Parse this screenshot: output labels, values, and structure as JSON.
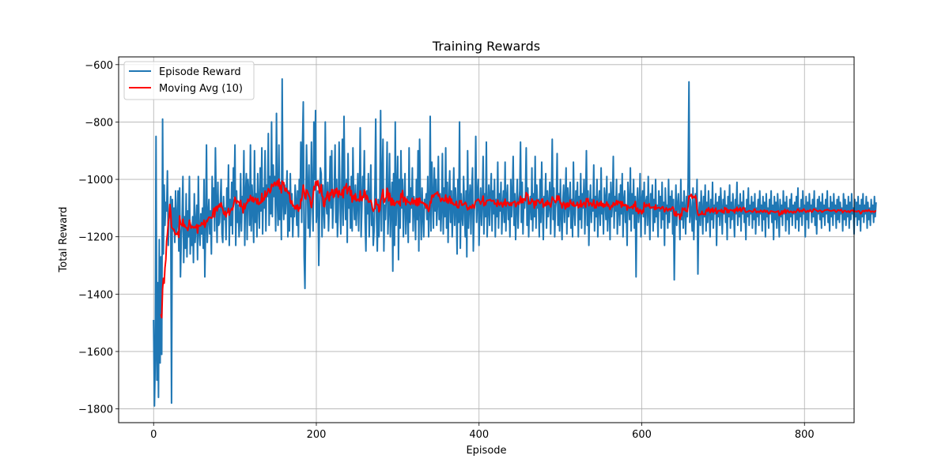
{
  "chart_data": {
    "type": "line",
    "title": "Training Rewards",
    "xlabel": "Episode",
    "ylabel": "Total Reward",
    "xlim": [
      -43,
      861
    ],
    "ylim": [
      -1848,
      -573
    ],
    "xticks": [
      0,
      200,
      400,
      600,
      800
    ],
    "yticks": [
      -1800,
      -1600,
      -1400,
      -1200,
      -1000,
      -800,
      -600
    ],
    "grid": true,
    "legend_position": "upper left",
    "series": [
      {
        "name": "Episode Reward",
        "color": "#1f77b4",
        "x_start": 0,
        "values": [
          -1490,
          -1790,
          -1630,
          -850,
          -1700,
          -1360,
          -1760,
          -1210,
          -1640,
          -1270,
          -1610,
          -790,
          -1260,
          -1020,
          -1160,
          -1080,
          -1110,
          -970,
          -1230,
          -1120,
          -1130,
          -1060,
          -1780,
          -1070,
          -1180,
          -1100,
          -1220,
          -1040,
          -1190,
          -1150,
          -1040,
          -1250,
          -1030,
          -1340,
          -1210,
          -1150,
          -990,
          -1290,
          -1130,
          -1240,
          -1050,
          -1270,
          -1110,
          -1200,
          -990,
          -1260,
          -1160,
          -1230,
          -1130,
          -1290,
          -1050,
          -1220,
          -1160,
          -1090,
          -1280,
          -990,
          -1180,
          -1230,
          -1120,
          -1190,
          -1100,
          -1240,
          -1000,
          -1340,
          -1150,
          -880,
          -1220,
          -1130,
          -1070,
          -1190,
          -1110,
          -1260,
          -990,
          -1130,
          -1030,
          -1180,
          -890,
          -1100,
          -1220,
          -1010,
          -1160,
          -1150,
          -1080,
          -1000,
          -1190,
          -1220,
          -1060,
          -1140,
          -1100,
          -1210,
          -1030,
          -1110,
          -950,
          -1230,
          -1070,
          -1160,
          -1010,
          -1190,
          -960,
          -1060,
          -880,
          -1230,
          -1040,
          -1150,
          -1090,
          -1200,
          -1140,
          -980,
          -1180,
          -1060,
          -1100,
          -900,
          -1230,
          -1050,
          -980,
          -1210,
          -1000,
          -1050,
          -1160,
          -880,
          -1180,
          -1020,
          -1090,
          -1220,
          -900,
          -1150,
          -1050,
          -1200,
          -980,
          -1080,
          -1170,
          -960,
          -1110,
          -890,
          -1190,
          -1030,
          -1100,
          -900,
          -1180,
          -1020,
          -1060,
          -840,
          -1160,
          -990,
          -1120,
          -800,
          -1130,
          -950,
          -1060,
          -990,
          -1180,
          -770,
          -1070,
          -1160,
          -880,
          -1140,
          -1010,
          -1210,
          -650,
          -1080,
          -1140,
          -1020,
          -1120,
          -1060,
          -970,
          -1200,
          -1040,
          -1180,
          -980,
          -1130,
          -1050,
          -1200,
          -1100,
          -1130,
          -1020,
          -1080,
          -1160,
          -1040,
          -1200,
          -1000,
          -1090,
          -870,
          -1150,
          -880,
          -730,
          -1270,
          -1380,
          -1120,
          -880,
          -1040,
          -1170,
          -950,
          -1200,
          -1100,
          -870,
          -1060,
          -1180,
          -800,
          -1000,
          -760,
          -1150,
          -1090,
          -1040,
          -1300,
          -1100,
          -960,
          -980,
          -1200,
          -1020,
          -1090,
          -1170,
          -800,
          -1080,
          -1120,
          -1010,
          -1180,
          -1080,
          -920,
          -1100,
          -900,
          -1170,
          -1070,
          -1040,
          -880,
          -1150,
          -1000,
          -1200,
          -1110,
          -870,
          -1030,
          -1190,
          -1070,
          -860,
          -1160,
          -780,
          -1050,
          -1140,
          -1000,
          -1220,
          -910,
          -1100,
          -1030,
          -1170,
          -990,
          -1180,
          -890,
          -1070,
          -1140,
          -1020,
          -1160,
          -1090,
          -980,
          -1180,
          -1050,
          -820,
          -1200,
          -1100,
          -990,
          -1060,
          -900,
          -1150,
          -1250,
          -1040,
          -1120,
          -980,
          -1200,
          -1080,
          -950,
          -1160,
          -1100,
          -1230,
          -1180,
          -1020,
          -790,
          -1130,
          -1250,
          -1070,
          -1200,
          -1100,
          -760,
          -1180,
          -1010,
          -860,
          -1250,
          -1090,
          -1140,
          -1050,
          -870,
          -1190,
          -1110,
          -910,
          -1200,
          -1090,
          -1010,
          -1320,
          -980,
          -1230,
          -800,
          -1160,
          -1060,
          -920,
          -1280,
          -1000,
          -1170,
          -900,
          -1100,
          -1000,
          -1200,
          -1070,
          -980,
          -1190,
          -1080,
          -1060,
          -1220,
          -890,
          -1150,
          -1030,
          -1100,
          -960,
          -1180,
          -1060,
          -1090,
          -1210,
          -1000,
          -1140,
          -900,
          -1250,
          -860,
          -1100,
          -1210,
          -1030,
          -1130,
          -1200,
          -1070,
          -1100,
          -1050,
          -1140,
          -990,
          -1200,
          -1110,
          -780,
          -1180,
          -940,
          -1060,
          -1170,
          -960,
          -1110,
          -1000,
          -1160,
          -1080,
          -920,
          -1140,
          -1050,
          -1180,
          -1100,
          -910,
          -1190,
          -1030,
          -1130,
          -890,
          -1170,
          -1010,
          -1220,
          -1070,
          -970,
          -1150,
          -1040,
          -1200,
          -1100,
          -960,
          -1160,
          -1030,
          -1090,
          -1260,
          -1000,
          -1150,
          -800,
          -1240,
          -1050,
          -1120,
          -1160,
          -990,
          -1090,
          -1200,
          -1040,
          -1270,
          -900,
          -1170,
          -1090,
          -1020,
          -1190,
          -1040,
          -960,
          -1250,
          -1110,
          -1080,
          -850,
          -1150,
          -1060,
          -1000,
          -1230,
          -1100,
          -1030,
          -1160,
          -1080,
          -920,
          -1190,
          -1050,
          -1130,
          -870,
          -1200,
          -1100,
          -1020,
          -1160,
          -1060,
          -980,
          -1180,
          -1040,
          -1120,
          -1000,
          -1200,
          -1070,
          -1130,
          -940,
          -1170,
          -1050,
          -1110,
          -1010,
          -1190,
          -1090,
          -1040,
          -1150,
          -940,
          -1180,
          -1070,
          -1020,
          -1140,
          -1080,
          -1200,
          -1000,
          -1130,
          -1060,
          -920,
          -1160,
          -1050,
          -1210,
          -1090,
          -1000,
          -1170,
          -1080,
          -1040,
          -870,
          -1150,
          -1010,
          -1190,
          -1080,
          -1100,
          -1050,
          -890,
          -1160,
          -1030,
          -1200,
          -1090,
          -1060,
          -1140,
          -960,
          -1180,
          -1050,
          -1130,
          -920,
          -1170,
          -1020,
          -1100,
          -1070,
          -1200,
          -1000,
          -1150,
          -940,
          -1110,
          -1210,
          -1060,
          -1080,
          -980,
          -1170,
          -1040,
          -1130,
          -1090,
          -1010,
          -1190,
          -1060,
          -860,
          -1140,
          -1030,
          -1200,
          -1100,
          -1070,
          -910,
          -1160,
          -1050,
          -1180,
          -1000,
          -1120,
          -1210,
          -1080,
          -1020,
          -1150,
          -1060,
          -960,
          -1190,
          -1030,
          -1130,
          -1090,
          -1010,
          -1170,
          -1070,
          -1200,
          -940,
          -1110,
          -1160,
          -1040,
          -1090,
          -1010,
          -1200,
          -1060,
          -1140,
          -980,
          -1170,
          -1050,
          -1100,
          -1000,
          -1190,
          -1080,
          -900,
          -1160,
          -1040,
          -1230,
          -1090,
          -1020,
          -1150,
          -1070,
          -1110,
          -950,
          -1180,
          -1060,
          -1130,
          -1000,
          -1200,
          -1080,
          -1040,
          -1160,
          -960,
          -1120,
          -1090,
          -1190,
          -1030,
          -1070,
          -1140,
          -990,
          -1180,
          -1100,
          -1050,
          -1210,
          -1010,
          -1130,
          -1080,
          -920,
          -1170,
          -1060,
          -1110,
          -1000,
          -1190,
          -1090,
          -1050,
          -1160,
          -1020,
          -1120,
          -980,
          -1200,
          -1070,
          -1040,
          -1150,
          -1100,
          -1230,
          -1010,
          -1080,
          -1140,
          -960,
          -1180,
          -1050,
          -1120,
          -1000,
          -1170,
          -1060,
          -1340,
          -1090,
          -1030,
          -1150,
          -1110,
          -980,
          -1200,
          -1070,
          -1040,
          -1130,
          -1010,
          -1190,
          -1080,
          -1060,
          -1160,
          -990,
          -1120,
          -1210,
          -1050,
          -1100,
          -1020,
          -1180,
          -1070,
          -1150,
          -1000,
          -1130,
          -1090,
          -1200,
          -1040,
          -1110,
          -1060,
          -1170,
          -1010,
          -1140,
          -1080,
          -1230,
          -1030,
          -1120,
          -1090,
          -1170,
          -1000,
          -1150,
          -1060,
          -1110,
          -1040,
          -1190,
          -1070,
          -1350,
          -1130,
          -1020,
          -1160,
          -1090,
          -1050,
          -1120,
          -1210,
          -1000,
          -1140,
          -1080,
          -1170,
          -1040,
          -1100,
          -1190,
          -1060,
          -1130,
          -1010,
          -660,
          -1150,
          -1070,
          -1110,
          -1180,
          -1030,
          -1210,
          -1090,
          -1050,
          -1140,
          -1000,
          -1330,
          -1120,
          -1080,
          -1160,
          -1040,
          -1100,
          -1190,
          -1060,
          -1130,
          -1020,
          -1180,
          -1080,
          -1150,
          -1040,
          -1110,
          -1200,
          -1070,
          -1140,
          -1010,
          -1170,
          -1090,
          -1120,
          -1050,
          -1230,
          -1080,
          -1130,
          -1060,
          -1160,
          -1030,
          -1100,
          -1190,
          -1070,
          -1120,
          -1040,
          -1150,
          -1090,
          -1210,
          -1060,
          -1130,
          -1020,
          -1170,
          -1080,
          -1140,
          -1050,
          -1110,
          -1200,
          -1070,
          -1120,
          -1010,
          -1160,
          -1090,
          -1130,
          -1050,
          -1180,
          -1080,
          -1120,
          -1040,
          -1150,
          -1100,
          -1210,
          -1070,
          -1130,
          -1030,
          -1160,
          -1090,
          -1120,
          -1060,
          -1170,
          -1080,
          -1140,
          -1050,
          -1190,
          -1100,
          -1130,
          -1070,
          -1160,
          -1040,
          -1120,
          -1090,
          -1180,
          -1060,
          -1140,
          -1080,
          -1200,
          -1050,
          -1130,
          -1100,
          -1170,
          -1070,
          -1120,
          -1040,
          -1150,
          -1090,
          -1210,
          -1060,
          -1140,
          -1080,
          -1170,
          -1050,
          -1110,
          -1200,
          -1070,
          -1130,
          -1090,
          -1160,
          -1040,
          -1120,
          -1080,
          -1180,
          -1060,
          -1140,
          -1100,
          -1190,
          -1070,
          -1130,
          -1050,
          -1160,
          -1090,
          -1120,
          -1080,
          -1170,
          -1060,
          -1140,
          -1030,
          -1180,
          -1100,
          -1130,
          -1070,
          -1160,
          -1040,
          -1120,
          -1090,
          -1200,
          -1060,
          -1140,
          -1080,
          -1170,
          -1050,
          -1110,
          -1090,
          -1150,
          -1070,
          -1130,
          -1040,
          -1160,
          -1100,
          -1190,
          -1070,
          -1120,
          -1060,
          -1140,
          -1080,
          -1170,
          -1050,
          -1130,
          -1090,
          -1160,
          -1070,
          -1120,
          -1040,
          -1150,
          -1100,
          -1180,
          -1060,
          -1130,
          -1080,
          -1160,
          -1050,
          -1120,
          -1090,
          -1170,
          -1070,
          -1140,
          -1060,
          -1150,
          -1080,
          -1120,
          -1100,
          -1180,
          -1050,
          -1140,
          -1070,
          -1160,
          -1090,
          -1130,
          -1060,
          -1170,
          -1080,
          -1140,
          -1050,
          -1120,
          -1100,
          -1190,
          -1070,
          -1130,
          -1080,
          -1160,
          -1060,
          -1140,
          -1090,
          -1180,
          -1070,
          -1130,
          -1050,
          -1150,
          -1090,
          -1120,
          -1060,
          -1170,
          -1080,
          -1140,
          -1100,
          -1160,
          -1070,
          -1120,
          -1090,
          -1150,
          -1060,
          -1130,
          -1080
        ]
      },
      {
        "name": "Moving Avg (10)",
        "color": "#ff0000",
        "x_start": 9,
        "values": []
      }
    ]
  }
}
